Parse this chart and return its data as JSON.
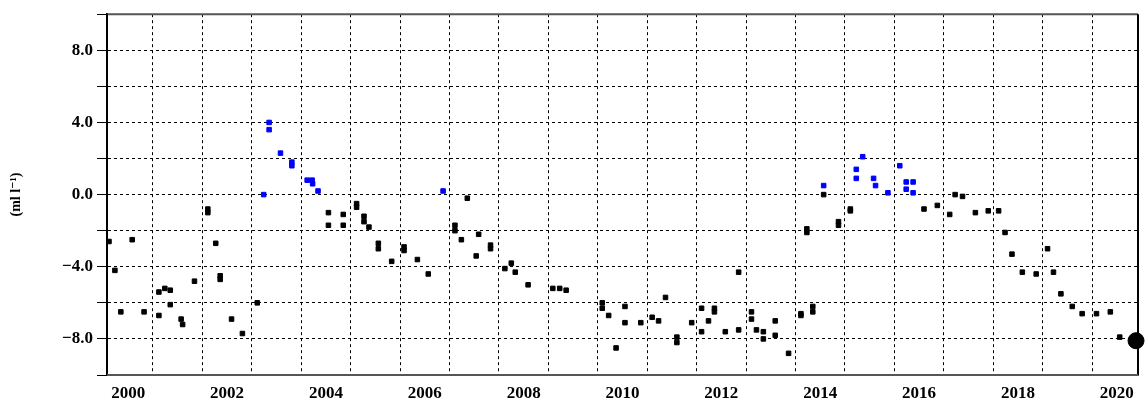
{
  "chart_data": {
    "type": "scatter",
    "ylabel": "(ml l⁻¹)",
    "grid": true,
    "legend": false,
    "xlim": [
      2000.07,
      2020.93
    ],
    "ylim": [
      -10,
      10
    ],
    "xticks": [
      {
        "value": 2000.5,
        "label": "2000"
      },
      {
        "value": 2001,
        "label": null
      },
      {
        "value": 2002,
        "label": null
      },
      {
        "value": 2002.5,
        "label": "2002"
      },
      {
        "value": 2003,
        "label": null
      },
      {
        "value": 2004,
        "label": null
      },
      {
        "value": 2004.5,
        "label": "2004"
      },
      {
        "value": 2005,
        "label": null
      },
      {
        "value": 2006,
        "label": null
      },
      {
        "value": 2006.5,
        "label": "2006"
      },
      {
        "value": 2007,
        "label": null
      },
      {
        "value": 2008,
        "label": null
      },
      {
        "value": 2008.5,
        "label": "2008"
      },
      {
        "value": 2009,
        "label": null
      },
      {
        "value": 2010,
        "label": null
      },
      {
        "value": 2010.5,
        "label": "2010"
      },
      {
        "value": 2011,
        "label": null
      },
      {
        "value": 2012,
        "label": null
      },
      {
        "value": 2012.5,
        "label": "2012"
      },
      {
        "value": 2013,
        "label": null
      },
      {
        "value": 2014,
        "label": null
      },
      {
        "value": 2014.5,
        "label": "2014"
      },
      {
        "value": 2015,
        "label": null
      },
      {
        "value": 2016,
        "label": null
      },
      {
        "value": 2016.5,
        "label": "2016"
      },
      {
        "value": 2017,
        "label": null
      },
      {
        "value": 2018,
        "label": null
      },
      {
        "value": 2018.5,
        "label": "2018"
      },
      {
        "value": 2019,
        "label": null
      },
      {
        "value": 2020,
        "label": null
      },
      {
        "value": 2020.5,
        "label": "2020"
      }
    ],
    "yticks": [
      {
        "value": -10,
        "label": null
      },
      {
        "value": -8,
        "label": "−8.0"
      },
      {
        "value": -6,
        "label": null
      },
      {
        "value": -4,
        "label": "−4.0"
      },
      {
        "value": -2,
        "label": null
      },
      {
        "value": 0,
        "label": "0.0"
      },
      {
        "value": 2,
        "label": null
      },
      {
        "value": 4,
        "label": "4.0"
      },
      {
        "value": 6,
        "label": null
      },
      {
        "value": 8,
        "label": "8.0"
      },
      {
        "value": 10,
        "label": null
      }
    ],
    "series": [
      {
        "color": "#000000",
        "marker": "square",
        "x": [
          2000.11,
          2000.23,
          2000.35,
          2000.58,
          2000.82,
          2001.12,
          2001.12,
          2001.24,
          2001.35,
          2001.35,
          2001.57,
          2001.6,
          2001.84,
          2002.11,
          2002.11,
          2002.27,
          2002.36,
          2002.36,
          2002.59,
          2002.81,
          2003.11,
          2004.55,
          2004.55,
          2004.85,
          2004.85,
          2005.12,
          2005.12,
          2005.27,
          2005.27,
          2005.37,
          2005.56,
          2005.56,
          2005.83,
          2006.08,
          2006.08,
          2006.35,
          2006.57,
          2007.11,
          2007.11,
          2007.24,
          2007.36,
          2007.54,
          2007.59,
          2007.83,
          2007.83,
          2008.12,
          2008.25,
          2008.33,
          2008.59,
          2009.09,
          2009.23,
          2009.36,
          2010.09,
          2010.09,
          2010.22,
          2010.37,
          2010.55,
          2010.55,
          2010.87,
          2011.1,
          2011.23,
          2011.37,
          2011.6,
          2011.6,
          2011.9,
          2012.1,
          2012.1,
          2012.24,
          2012.36,
          2012.36,
          2012.58,
          2012.85,
          2012.85,
          2013.11,
          2013.11,
          2013.21,
          2013.35,
          2013.35,
          2013.59,
          2013.59,
          2013.86,
          2014.11,
          2014.11,
          2014.23,
          2014.23,
          2014.35,
          2014.35,
          2014.57,
          2014.87,
          2014.87,
          2015.11,
          2015.11,
          2016.6,
          2016.87,
          2017.12,
          2017.23,
          2017.38,
          2017.64,
          2017.9,
          2018.11,
          2018.24,
          2018.38,
          2018.59,
          2018.87,
          2019.1,
          2019.22,
          2019.37,
          2019.6,
          2019.8,
          2020.09,
          2020.37,
          2020.56
        ],
        "values": [
          -2.6,
          -4.2,
          -6.5,
          -2.5,
          -6.5,
          -5.4,
          -6.7,
          -5.2,
          -5.3,
          -6.1,
          -6.9,
          -7.2,
          -4.8,
          -0.8,
          -1.0,
          -2.7,
          -4.5,
          -4.7,
          -6.9,
          -7.7,
          -6.0,
          -1.0,
          -1.7,
          -1.1,
          -1.7,
          -0.5,
          -0.7,
          -1.2,
          -1.5,
          -1.8,
          -2.7,
          -3.0,
          -3.7,
          -2.9,
          -3.1,
          -3.6,
          -4.4,
          -1.7,
          -2.0,
          -2.5,
          -0.2,
          -3.4,
          -2.2,
          -2.8,
          -3.0,
          -4.1,
          -3.8,
          -4.3,
          -5.0,
          -5.2,
          -5.2,
          -5.3,
          -6.0,
          -6.3,
          -6.7,
          -8.5,
          -6.2,
          -7.1,
          -7.1,
          -6.8,
          -7.0,
          -5.7,
          -7.9,
          -8.2,
          -7.1,
          -6.3,
          -7.6,
          -7.0,
          -6.3,
          -6.5,
          -7.6,
          -4.3,
          -7.5,
          -6.5,
          -6.9,
          -7.5,
          -7.6,
          -8.0,
          -7.0,
          -7.8,
          -8.8,
          -6.6,
          -6.7,
          -1.9,
          -2.1,
          -6.2,
          -6.5,
          0.0,
          -1.5,
          -1.7,
          -0.8,
          -0.9,
          -0.8,
          -0.6,
          -1.1,
          0.0,
          -0.1,
          -1.0,
          -0.9,
          -0.9,
          -2.1,
          -3.3,
          -4.3,
          -4.4,
          -3.0,
          -4.3,
          -5.5,
          -6.2,
          -6.6,
          -6.6,
          -6.5,
          -7.9
        ]
      },
      {
        "color": "#0000ff",
        "marker": "square",
        "x": [
          2003.24,
          2003.35,
          2003.35,
          2003.58,
          2003.81,
          2003.81,
          2004.12,
          2004.17,
          2004.22,
          2004.23,
          2004.34,
          2006.87,
          2014.57,
          2015.23,
          2015.23,
          2015.36,
          2015.58,
          2015.62,
          2015.87,
          2016.11,
          2016.24,
          2016.24,
          2016.38,
          2016.38
        ],
        "values": [
          0.0,
          4.0,
          3.6,
          2.3,
          1.8,
          1.6,
          0.8,
          null,
          0.8,
          0.6,
          0.2,
          0.2,
          0.5,
          1.4,
          0.9,
          2.1,
          0.9,
          0.5,
          0.1,
          1.6,
          0.7,
          0.3,
          0.7,
          0.1
        ]
      },
      {
        "color": "#000000",
        "marker": "circle",
        "x": [
          2020.89
        ],
        "values": [
          -8.1
        ]
      }
    ]
  }
}
